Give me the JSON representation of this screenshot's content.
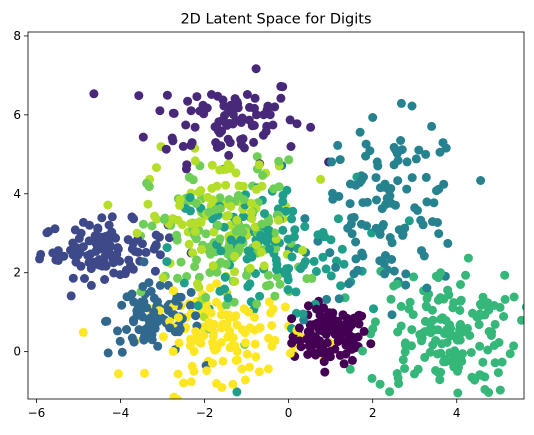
{
  "chart_data": {
    "type": "scatter",
    "title": "2D Latent Space for Digits",
    "xlabel": "",
    "ylabel": "",
    "xlim": [
      -6.2,
      5.6
    ],
    "ylim": [
      -1.2,
      8.1
    ],
    "x_ticks": [
      "−6",
      "−4",
      "−2",
      "0",
      "2",
      "4"
    ],
    "x_tick_values": [
      -6,
      -4,
      -2,
      0,
      2,
      4
    ],
    "y_ticks": [
      "0",
      "2",
      "4",
      "6",
      "8"
    ],
    "y_tick_values": [
      0,
      2,
      4,
      6,
      8
    ],
    "grid": false,
    "legend": "none",
    "colormap": "viridis",
    "clusters": [
      {
        "label_value": 0,
        "color": "#440154",
        "center": [
          1.0,
          0.4
        ],
        "spread": [
          0.45,
          0.35
        ],
        "count": 110
      },
      {
        "label_value": 1,
        "color": "#482878",
        "center": [
          -1.5,
          5.9
        ],
        "spread": [
          0.9,
          0.55
        ],
        "count": 90
      },
      {
        "label_value": 2,
        "color": "#3e4989",
        "center": [
          -4.4,
          2.6
        ],
        "spread": [
          0.75,
          0.35
        ],
        "count": 110
      },
      {
        "label_value": 3,
        "color": "#31688e",
        "center": [
          -3.2,
          0.8
        ],
        "spread": [
          0.55,
          0.45
        ],
        "count": 90
      },
      {
        "label_value": 4,
        "color": "#26828e",
        "center": [
          2.4,
          3.6
        ],
        "spread": [
          0.9,
          1.1
        ],
        "count": 120
      },
      {
        "label_value": 5,
        "color": "#1f9e89",
        "center": [
          -0.6,
          2.6
        ],
        "spread": [
          1.1,
          0.9
        ],
        "count": 130
      },
      {
        "label_value": 6,
        "color": "#35b779",
        "center": [
          3.7,
          0.5
        ],
        "spread": [
          0.9,
          0.8
        ],
        "count": 160
      },
      {
        "label_value": 7,
        "color": "#6ece58",
        "center": [
          -1.5,
          2.8
        ],
        "spread": [
          0.9,
          1.0
        ],
        "count": 120
      },
      {
        "label_value": 8,
        "color": "#b5de2b",
        "center": [
          -1.6,
          3.4
        ],
        "spread": [
          0.9,
          0.8
        ],
        "count": 110
      },
      {
        "label_value": 9,
        "color": "#fde725",
        "center": [
          -1.5,
          0.4
        ],
        "spread": [
          0.9,
          0.55
        ],
        "count": 130
      }
    ]
  }
}
